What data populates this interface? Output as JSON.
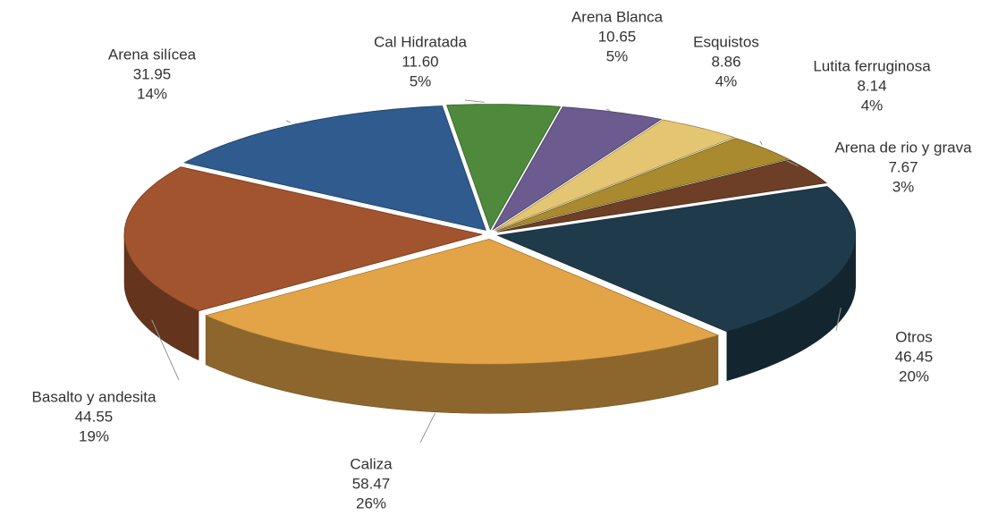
{
  "chart_data": {
    "type": "pie3d",
    "categories": [
      "Cal Hidratada",
      "Arena Blanca",
      "Esquistos",
      "Lutita ferruginosa",
      "Arena de rio y grava",
      "Otros",
      "Caliza",
      "Basalto y andesita",
      "Arena silícea"
    ],
    "values": [
      11.6,
      10.65,
      8.86,
      8.14,
      7.67,
      46.45,
      58.47,
      44.55,
      31.95
    ],
    "value_labels": [
      "11.60",
      "10.65",
      "8.86",
      "8.14",
      "7.67",
      "46.45",
      "58.47",
      "44.55",
      "31.95"
    ],
    "percents": [
      5,
      5,
      4,
      4,
      3,
      20,
      26,
      19,
      14
    ],
    "percent_labels": [
      "5%",
      "5%",
      "4%",
      "4%",
      "3%",
      "20%",
      "26%",
      "19%",
      "14%"
    ],
    "colors": [
      "#4f8a3c",
      "#6b5b8e",
      "#e3c572",
      "#a98a2e",
      "#6c3f26",
      "#1f3b4b",
      "#e2a447",
      "#a2542e",
      "#2f5b8e"
    ]
  }
}
